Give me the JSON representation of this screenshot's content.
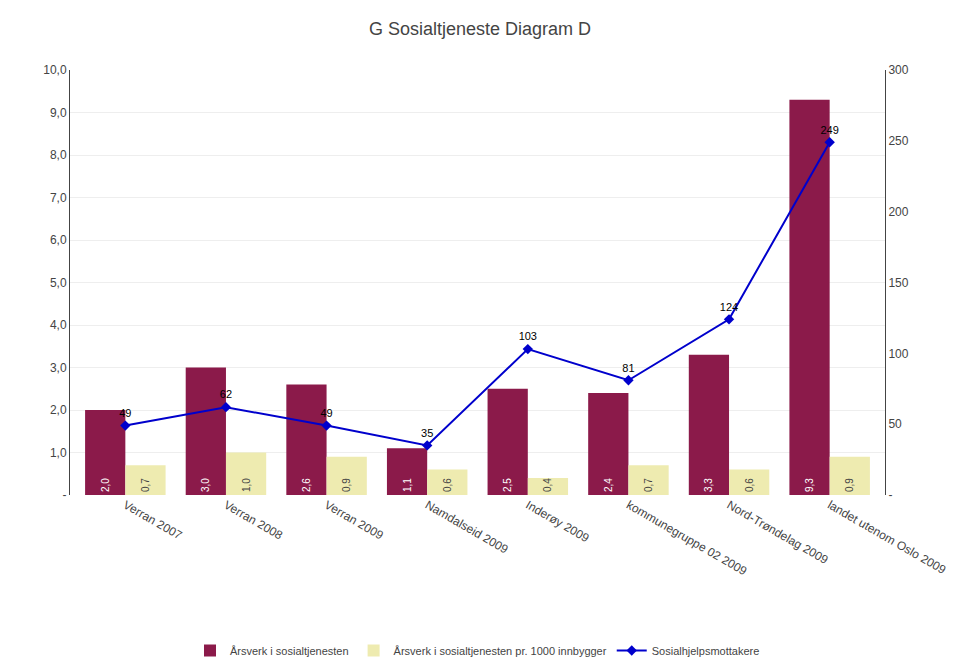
{
  "chart_data": {
    "type": "bar",
    "title": "G Sosialtjeneste Diagram D",
    "categories": [
      "Verran 2007",
      "Verran 2008",
      "Verran 2009",
      "Namdalseid 2009",
      "Inderøy 2009",
      "kommunegruppe 02 2009",
      "Nord-Trøndelag 2009",
      "landet utenom Oslo 2009"
    ],
    "series": [
      {
        "name": "Årsverk i sosialtjenesten",
        "color": "#8B1A4A",
        "values": [
          2.0,
          3.0,
          2.6,
          1.1,
          2.5,
          2.4,
          3.3,
          9.3
        ],
        "value_labels": [
          "2,0",
          "3,0",
          "2,6",
          "1,1",
          "2,5",
          "2,4",
          "3,3",
          "9,3"
        ]
      },
      {
        "name": "Årsverk i sosialtjenesten pr. 1000 innbygger",
        "color": "#EEEBB0",
        "values": [
          0.7,
          1.0,
          0.9,
          0.6,
          0.4,
          0.7,
          0.6,
          0.9
        ],
        "value_labels": [
          "0,7",
          "1,0",
          "0,9",
          "0,6",
          "0,4",
          "0,7",
          "0,6",
          "0,9"
        ]
      },
      {
        "name": "Sosialhjelpsmottakere",
        "type": "line",
        "axis": "y2",
        "color": "#0000CC",
        "marker": "diamond",
        "values": [
          49,
          62,
          49,
          35,
          103,
          81,
          124,
          249
        ]
      }
    ],
    "ylim": [
      0,
      10.0
    ],
    "yticks": [
      {
        "value": 0,
        "label": "-"
      },
      {
        "value": 1.0,
        "label": "1,0"
      },
      {
        "value": 2.0,
        "label": "2,0"
      },
      {
        "value": 3.0,
        "label": "3,0"
      },
      {
        "value": 4.0,
        "label": "4,0"
      },
      {
        "value": 5.0,
        "label": "5,0"
      },
      {
        "value": 6.0,
        "label": "6,0"
      },
      {
        "value": 7.0,
        "label": "7,0"
      },
      {
        "value": 8.0,
        "label": "8,0"
      },
      {
        "value": 9.0,
        "label": "9,0"
      },
      {
        "value": 10.0,
        "label": "10,0"
      }
    ],
    "y2lim": [
      0,
      300
    ],
    "y2ticks": [
      {
        "value": 0,
        "label": "-"
      },
      50,
      100,
      150,
      200,
      250,
      300
    ],
    "grid": true,
    "legend": "bottom",
    "data_labels": true
  }
}
